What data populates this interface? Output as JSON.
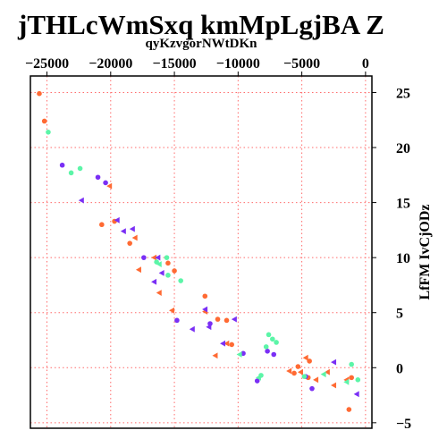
{
  "chart_data": {
    "type": "scatter",
    "title": "jTHLcWmSxq kmMpLgjBA Z",
    "subtitle": "qyKzvgorNWtDKn",
    "xlabel": "",
    "ylabel": "LfFM IvCjODz",
    "x_axis_position": "top",
    "y_axis_position": "right",
    "xlim": [
      -26300,
      500
    ],
    "ylim": [
      -5.5,
      26.5
    ],
    "x_ticks": [
      -25000,
      -20000,
      -15000,
      -10000,
      -5000,
      0
    ],
    "x_tick_labels": [
      "−25000",
      "−20000",
      "−15000",
      "−10000",
      "−5000",
      "0"
    ],
    "y_ticks": [
      -5,
      0,
      5,
      10,
      15,
      20,
      25
    ],
    "y_tick_labels": [
      "−5",
      "0",
      "5",
      "10",
      "15",
      "20",
      "25"
    ],
    "grid": true,
    "grid_color": "#ff6b6b",
    "series": [
      {
        "color": "#ff6a33",
        "marker": "circle",
        "points": [
          [
            -25600,
            24.9
          ],
          [
            -25200,
            22.4
          ],
          [
            -20700,
            13.0
          ],
          [
            -19700,
            13.3
          ],
          [
            -18500,
            11.3
          ],
          [
            -15500,
            9.5
          ],
          [
            -15000,
            8.8
          ],
          [
            -12600,
            6.5
          ],
          [
            -11600,
            4.4
          ],
          [
            -10900,
            4.3
          ],
          [
            -10500,
            2.1
          ],
          [
            -5600,
            -0.5
          ],
          [
            -5300,
            0.1
          ],
          [
            -4500,
            -0.9
          ],
          [
            -4400,
            0.6
          ],
          [
            -1300,
            -3.8
          ],
          [
            -1100,
            -0.9
          ]
        ]
      },
      {
        "color": "#ff6a33",
        "marker": "triangle",
        "points": [
          [
            -20100,
            16.5
          ],
          [
            -18100,
            11.8
          ],
          [
            -17800,
            8.9
          ],
          [
            -16600,
            10.0
          ],
          [
            -16200,
            6.8
          ],
          [
            -15200,
            5.2
          ],
          [
            -12600,
            5.1
          ],
          [
            -11800,
            1.1
          ],
          [
            -10900,
            2.2
          ],
          [
            -6000,
            -0.3
          ],
          [
            -5100,
            -0.4
          ],
          [
            -4700,
            0.9
          ],
          [
            -3900,
            -1.1
          ],
          [
            -3000,
            -0.4
          ],
          [
            -2500,
            -1.6
          ],
          [
            -1500,
            -1.1
          ]
        ]
      },
      {
        "color": "#7a2ff5",
        "marker": "circle",
        "points": [
          [
            -23800,
            18.4
          ],
          [
            -21000,
            17.3
          ],
          [
            -20400,
            16.8
          ],
          [
            -17400,
            10.0
          ],
          [
            -14800,
            4.3
          ],
          [
            -12200,
            4.0
          ],
          [
            -9600,
            1.3
          ],
          [
            -8500,
            -1.2
          ],
          [
            -7700,
            1.5
          ],
          [
            -7200,
            1.2
          ],
          [
            -4700,
            -0.8
          ],
          [
            -4200,
            -1.9
          ]
        ]
      },
      {
        "color": "#7a2ff5",
        "marker": "triangle",
        "points": [
          [
            -22300,
            15.2
          ],
          [
            -19500,
            13.4
          ],
          [
            -19000,
            12.4
          ],
          [
            -18300,
            12.6
          ],
          [
            -16600,
            7.8
          ],
          [
            -16300,
            10.0
          ],
          [
            -16000,
            8.6
          ],
          [
            -13600,
            3.5
          ],
          [
            -12600,
            5.3
          ],
          [
            -12300,
            3.7
          ],
          [
            -11200,
            2.2
          ],
          [
            -10300,
            4.4
          ],
          [
            -2500,
            0.5
          ],
          [
            -700,
            -2.4
          ]
        ]
      },
      {
        "color": "#5cf5a8",
        "marker": "circle",
        "points": [
          [
            -24900,
            21.4
          ],
          [
            -23100,
            17.7
          ],
          [
            -22400,
            18.1
          ],
          [
            -16400,
            9.6
          ],
          [
            -15600,
            10.0
          ],
          [
            -15500,
            8.4
          ],
          [
            -14500,
            7.9
          ],
          [
            -8200,
            -0.7
          ],
          [
            -7800,
            1.9
          ],
          [
            -7600,
            3.0
          ],
          [
            -7300,
            2.6
          ],
          [
            -7000,
            2.3
          ],
          [
            -4800,
            -0.8
          ],
          [
            -1100,
            0.3
          ],
          [
            -600,
            -1.1
          ]
        ]
      },
      {
        "color": "#5cf5a8",
        "marker": "triangle",
        "points": [
          [
            -16200,
            9.4
          ],
          [
            -9900,
            1.2
          ],
          [
            -8400,
            -0.9
          ],
          [
            -3300,
            -0.6
          ],
          [
            -1500,
            -1.3
          ]
        ]
      }
    ]
  }
}
